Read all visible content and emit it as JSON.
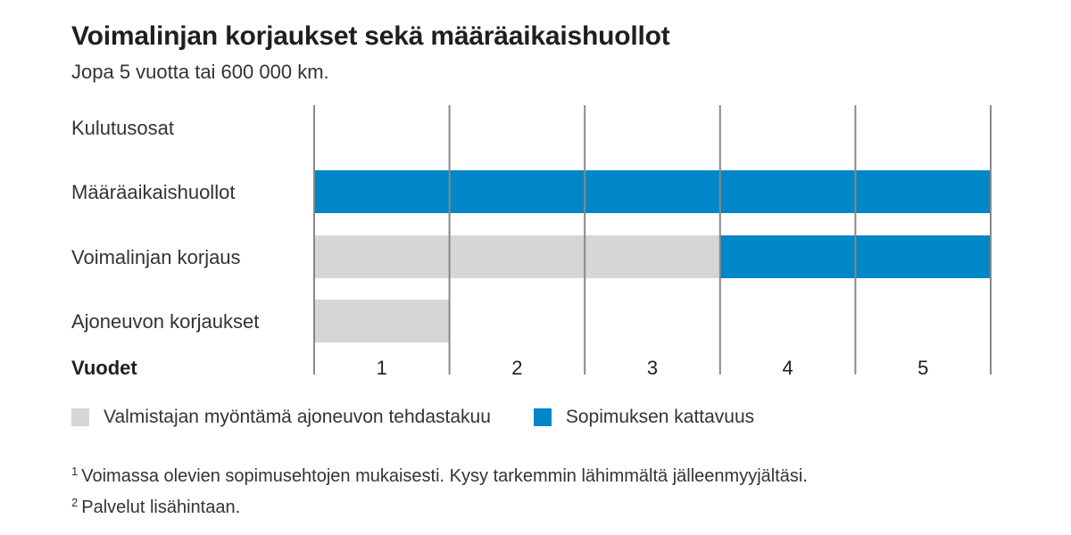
{
  "title": "Voimalinjan korjaukset sekä määräaikaishuollot",
  "subtitle": "Jopa 5 vuotta tai 600 000 km.",
  "colors": {
    "contract": "#0087c8",
    "warranty": "#d6d6d6",
    "grid": "#888888"
  },
  "chart_data": {
    "type": "bar",
    "orientation": "horizontal",
    "stacked": true,
    "categories": [
      "Kulutusosat",
      "Määräaikaishuollot",
      "Voimalinjan korjaus",
      "Ajoneuvon korjaukset"
    ],
    "xlabel": "Vuodet",
    "x_ticks": [
      "1",
      "2",
      "3",
      "4",
      "5"
    ],
    "xlim": [
      0,
      5
    ],
    "grid": true,
    "legend_position": "bottom-left",
    "series": [
      {
        "name": "Valmistajan myöntämä ajoneuvon tehdastakuu",
        "color": "#d6d6d6",
        "ranges": [
          null,
          null,
          [
            0,
            3
          ],
          [
            0,
            1
          ]
        ]
      },
      {
        "name": "Sopimuksen kattavuus",
        "color": "#0087c8",
        "ranges": [
          null,
          [
            0,
            5
          ],
          [
            3,
            5
          ],
          null
        ]
      }
    ]
  },
  "footnotes": [
    {
      "mark": "1",
      "text": "Voimassa olevien sopimusehtojen mukaisesti. Kysy tarkemmin lähimmältä jälleenmyyjältäsi."
    },
    {
      "mark": "2",
      "text": "Palvelut lisähintaan."
    }
  ]
}
